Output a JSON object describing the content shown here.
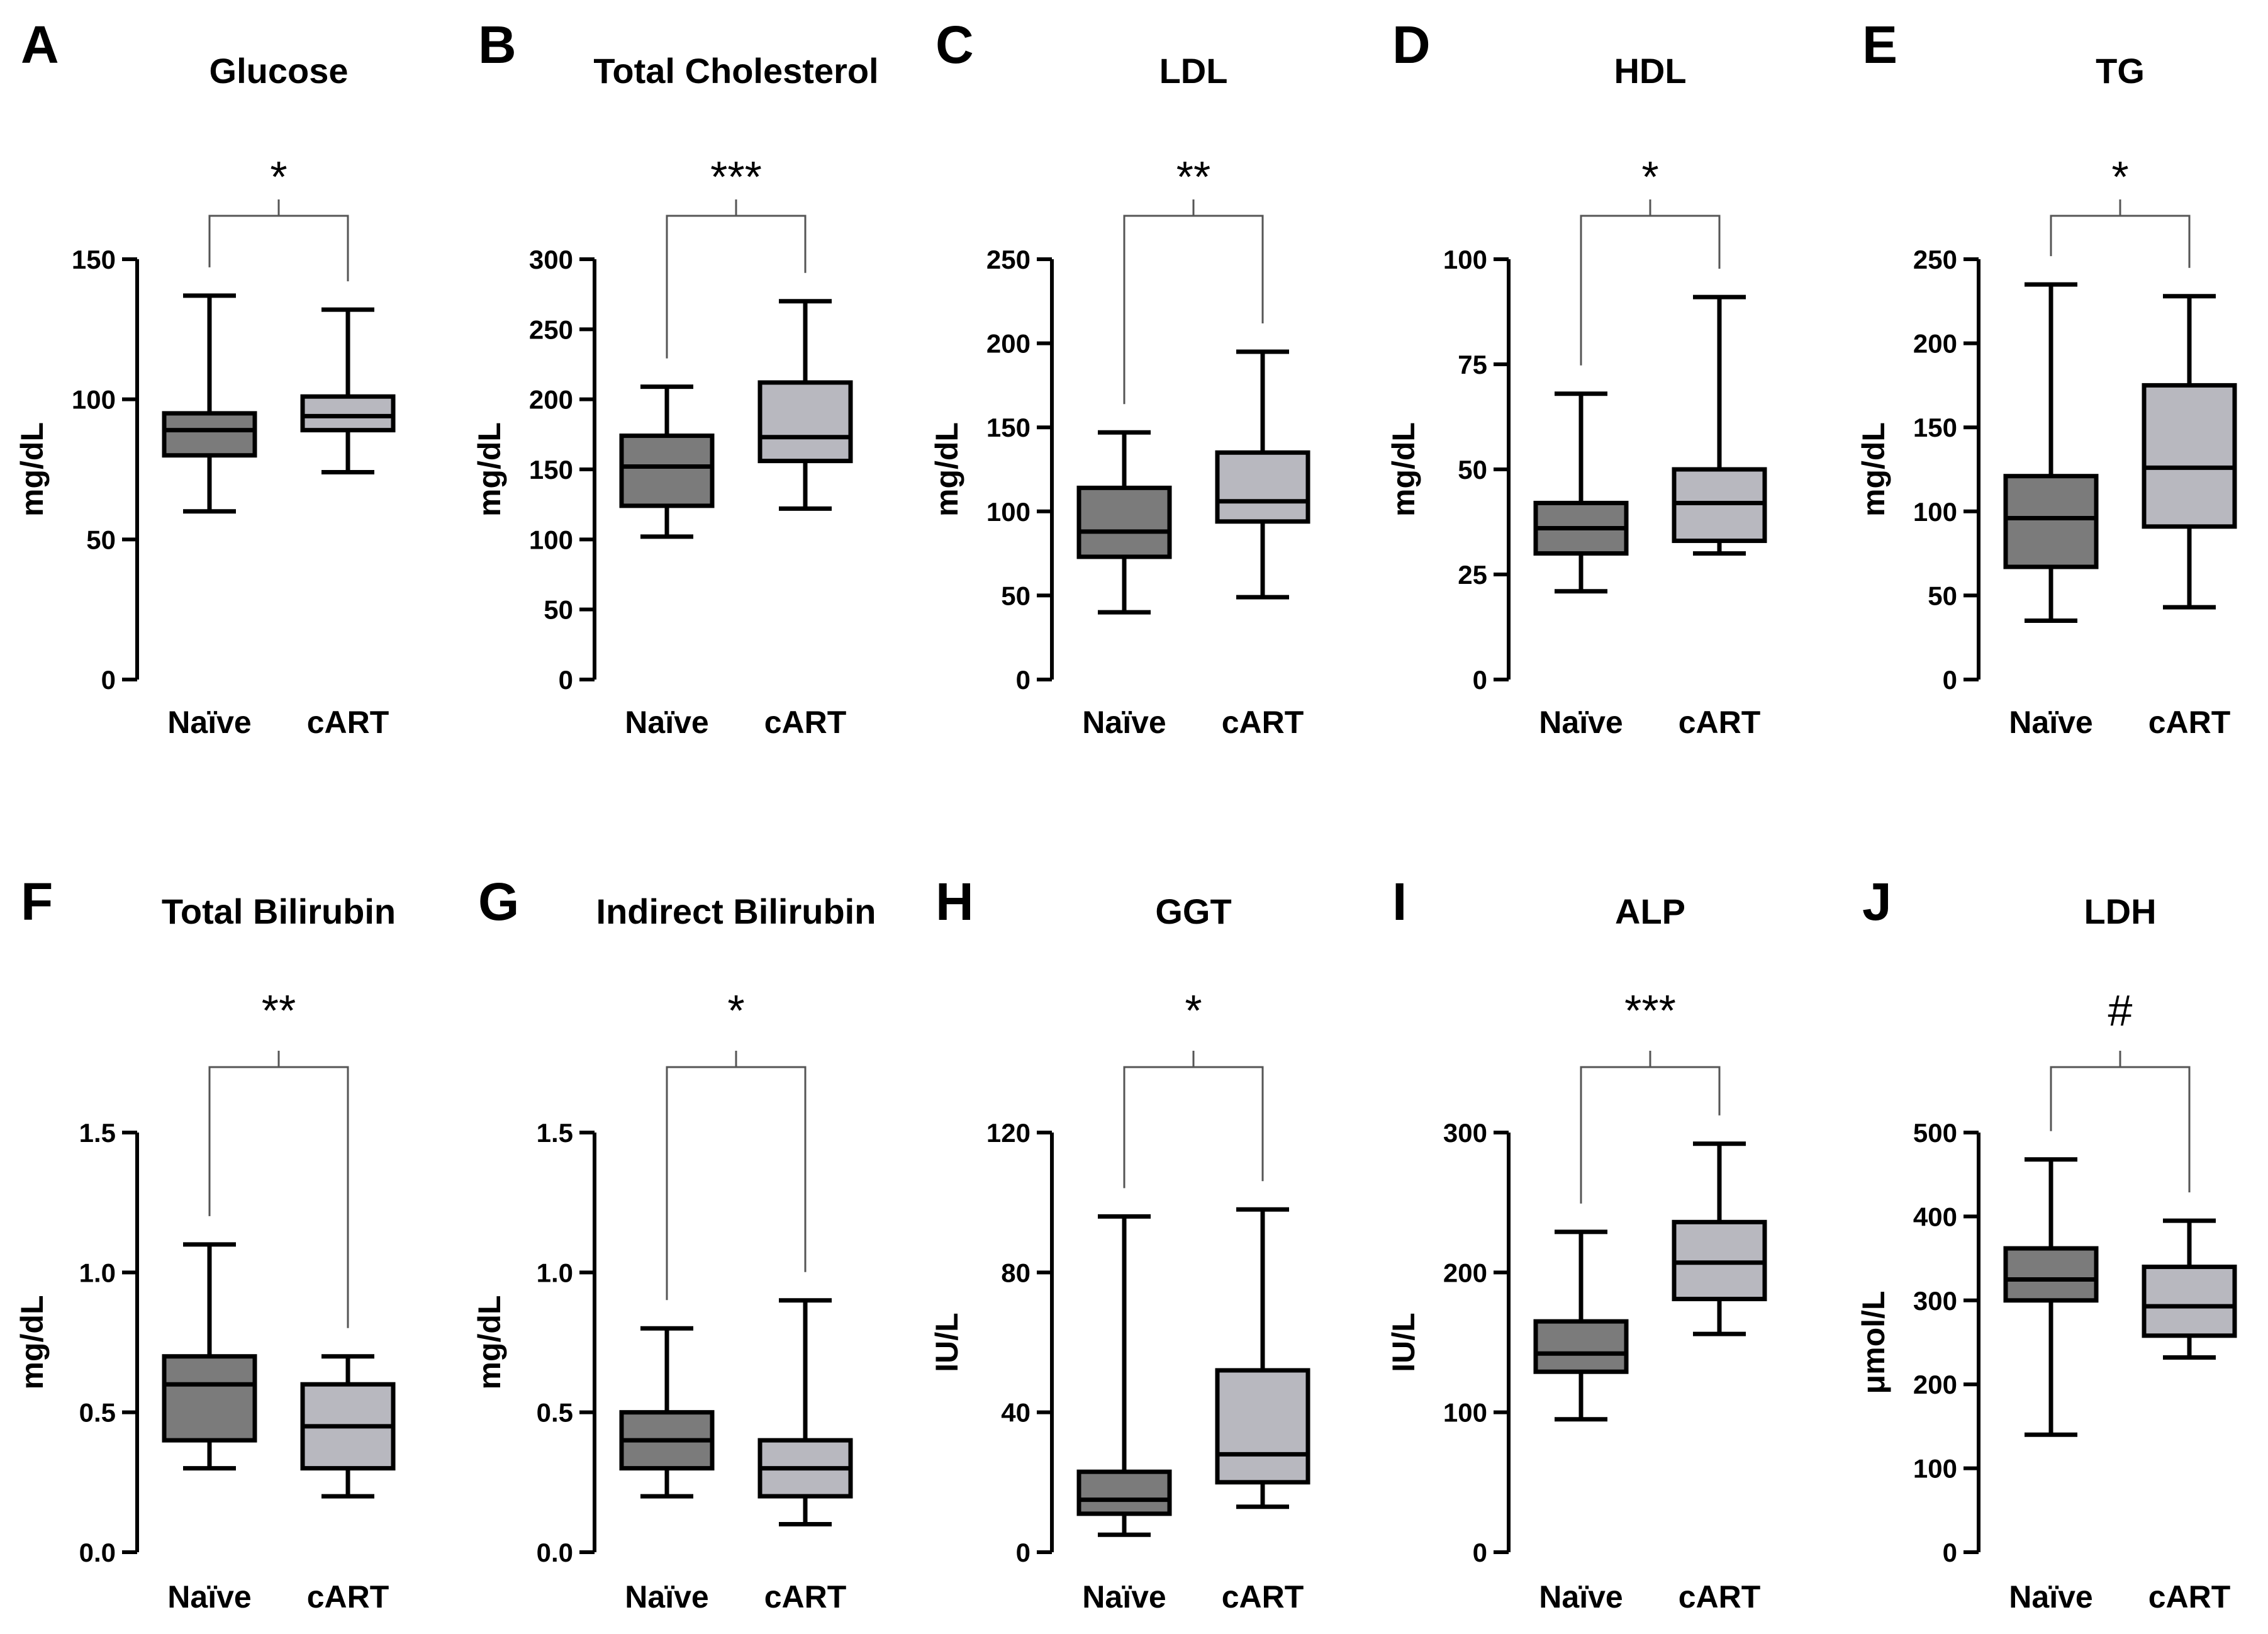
{
  "figure": {
    "colors": {
      "naive_box": "#7b7b7b",
      "cart_box": "#b8b8bf",
      "ink": "#000000",
      "bracket": "#555555"
    }
  },
  "chart_data": [
    {
      "type": "box",
      "panel": "A",
      "title": "Glucose",
      "ylabel": "mg/dL",
      "ylim": [
        0,
        150
      ],
      "yticks": [
        "0",
        "50",
        "100",
        "150"
      ],
      "categories": [
        "Naïve",
        "cART"
      ],
      "significance": "*",
      "boxes": [
        {
          "group": "Naïve",
          "min": 60,
          "q1": 80,
          "median": 89,
          "q3": 95,
          "max": 137
        },
        {
          "group": "cART",
          "min": 74,
          "q1": 89,
          "median": 94,
          "q3": 101,
          "max": 132
        }
      ]
    },
    {
      "type": "box",
      "panel": "B",
      "title": "Total Cholesterol",
      "ylabel": "mg/dL",
      "ylim": [
        0,
        300
      ],
      "yticks": [
        "0",
        "50",
        "100",
        "150",
        "200",
        "250",
        "300"
      ],
      "categories": [
        "Naïve",
        "cART"
      ],
      "significance": "***",
      "boxes": [
        {
          "group": "Naïve",
          "min": 102,
          "q1": 124,
          "median": 152,
          "q3": 174,
          "max": 209
        },
        {
          "group": "cART",
          "min": 122,
          "q1": 156,
          "median": 173,
          "q3": 212,
          "max": 270
        }
      ]
    },
    {
      "type": "box",
      "panel": "C",
      "title": "LDL",
      "ylabel": "mg/dL",
      "ylim": [
        0,
        250
      ],
      "yticks": [
        "0",
        "50",
        "100",
        "150",
        "200",
        "250"
      ],
      "categories": [
        "Naïve",
        "cART"
      ],
      "significance": "**",
      "boxes": [
        {
          "group": "Naïve",
          "min": 40,
          "q1": 73,
          "median": 88,
          "q3": 114,
          "max": 147
        },
        {
          "group": "cART",
          "min": 49,
          "q1": 94,
          "median": 106,
          "q3": 135,
          "max": 195
        }
      ]
    },
    {
      "type": "box",
      "panel": "D",
      "title": "HDL",
      "ylabel": "mg/dL",
      "ylim": [
        0,
        100
      ],
      "yticks": [
        "0",
        "25",
        "50",
        "75",
        "100"
      ],
      "categories": [
        "Naïve",
        "cART"
      ],
      "significance": "*",
      "boxes": [
        {
          "group": "Naïve",
          "min": 21,
          "q1": 30,
          "median": 36,
          "q3": 42,
          "max": 68
        },
        {
          "group": "cART",
          "min": 30,
          "q1": 33,
          "median": 42,
          "q3": 50,
          "max": 91
        }
      ]
    },
    {
      "type": "box",
      "panel": "E",
      "title": "TG",
      "ylabel": "mg/dL",
      "ylim": [
        0,
        250
      ],
      "yticks": [
        "0",
        "50",
        "100",
        "150",
        "200",
        "250"
      ],
      "categories": [
        "Naïve",
        "cART"
      ],
      "significance": "*",
      "boxes": [
        {
          "group": "Naïve",
          "min": 35,
          "q1": 67,
          "median": 96,
          "q3": 121,
          "max": 235
        },
        {
          "group": "cART",
          "min": 43,
          "q1": 91,
          "median": 126,
          "q3": 175,
          "max": 228
        }
      ]
    },
    {
      "type": "box",
      "panel": "F",
      "title": "Total Bilirubin",
      "ylabel": "mg/dL",
      "ylim": [
        0,
        1.5
      ],
      "yticks": [
        "0.0",
        "0.5",
        "1.0",
        "1.5"
      ],
      "categories": [
        "Naïve",
        "cART"
      ],
      "significance": "**",
      "boxes": [
        {
          "group": "Naïve",
          "min": 0.3,
          "q1": 0.4,
          "median": 0.6,
          "q3": 0.7,
          "max": 1.1
        },
        {
          "group": "cART",
          "min": 0.2,
          "q1": 0.3,
          "median": 0.45,
          "q3": 0.6,
          "max": 0.7
        }
      ]
    },
    {
      "type": "box",
      "panel": "G",
      "title": "Indirect Bilirubin",
      "ylabel": "mg/dL",
      "ylim": [
        0,
        1.5
      ],
      "yticks": [
        "0.0",
        "0.5",
        "1.0",
        "1.5"
      ],
      "categories": [
        "Naïve",
        "cART"
      ],
      "significance": "*",
      "boxes": [
        {
          "group": "Naïve",
          "min": 0.2,
          "q1": 0.3,
          "median": 0.4,
          "q3": 0.5,
          "max": 0.8
        },
        {
          "group": "cART",
          "min": 0.1,
          "q1": 0.2,
          "median": 0.3,
          "q3": 0.4,
          "max": 0.9
        }
      ]
    },
    {
      "type": "box",
      "panel": "H",
      "title": "GGT",
      "ylabel": "IU/L",
      "ylim": [
        0,
        120
      ],
      "yticks": [
        "0",
        "40",
        "80",
        "120"
      ],
      "categories": [
        "Naïve",
        "cART"
      ],
      "significance": "*",
      "boxes": [
        {
          "group": "Naïve",
          "min": 5,
          "q1": 11,
          "median": 15,
          "q3": 23,
          "max": 96
        },
        {
          "group": "cART",
          "min": 13,
          "q1": 20,
          "median": 28,
          "q3": 52,
          "max": 98
        }
      ]
    },
    {
      "type": "box",
      "panel": "I",
      "title": "ALP",
      "ylabel": "IU/L",
      "ylim": [
        0,
        300
      ],
      "yticks": [
        "0",
        "100",
        "200",
        "300"
      ],
      "categories": [
        "Naïve",
        "cART"
      ],
      "significance": "***",
      "boxes": [
        {
          "group": "Naïve",
          "min": 95,
          "q1": 129,
          "median": 142,
          "q3": 165,
          "max": 229
        },
        {
          "group": "cART",
          "min": 156,
          "q1": 181,
          "median": 207,
          "q3": 236,
          "max": 292
        }
      ]
    },
    {
      "type": "box",
      "panel": "J",
      "title": "LDH",
      "ylabel": "μmol/L",
      "ylim": [
        0,
        500
      ],
      "yticks": [
        "0",
        "100",
        "200",
        "300",
        "400",
        "500"
      ],
      "categories": [
        "Naïve",
        "cART"
      ],
      "significance": "#",
      "boxes": [
        {
          "group": "Naïve",
          "min": 140,
          "q1": 300,
          "median": 325,
          "q3": 362,
          "max": 468
        },
        {
          "group": "cART",
          "min": 232,
          "q1": 258,
          "median": 293,
          "q3": 340,
          "max": 395
        }
      ]
    }
  ]
}
